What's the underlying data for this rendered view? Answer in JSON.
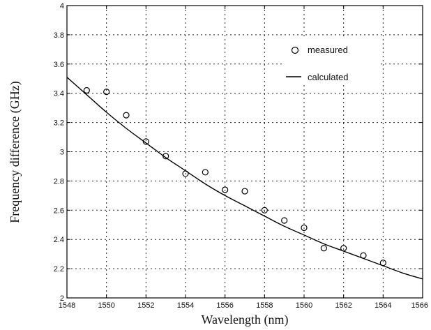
{
  "chart_data": {
    "type": "scatter",
    "title": "",
    "xlabel": "Wavelength (nm)",
    "ylabel": "Frequency difference (GHz)",
    "xlim": [
      1548,
      1566
    ],
    "ylim": [
      2,
      4
    ],
    "grid": true,
    "legend_placement": "top-right",
    "x_ticks": [
      "1548",
      "1550",
      "1552",
      "1554",
      "1556",
      "1558",
      "1560",
      "1562",
      "1564",
      "1566"
    ],
    "y_ticks": [
      "2",
      "2.2",
      "2.4",
      "2.6",
      "2.8",
      "3",
      "3.2",
      "3.4",
      "3.6",
      "3.8",
      "4"
    ],
    "series": [
      {
        "name": "measured",
        "kind": "markers",
        "marker": "open-circle",
        "x": [
          1549,
          1550,
          1551,
          1552,
          1553,
          1554,
          1555,
          1556,
          1557,
          1558,
          1559,
          1560,
          1561,
          1562,
          1563,
          1564
        ],
        "y": [
          3.42,
          3.41,
          3.25,
          3.07,
          2.97,
          2.85,
          2.86,
          2.74,
          2.73,
          2.6,
          2.53,
          2.48,
          2.34,
          2.34,
          2.29,
          2.24
        ]
      },
      {
        "name": "calculated",
        "kind": "line",
        "x": [
          1548,
          1549,
          1550,
          1551,
          1552,
          1553,
          1554,
          1555,
          1556,
          1557,
          1558,
          1559,
          1560,
          1561,
          1562,
          1563,
          1564,
          1565,
          1566
        ],
        "y": [
          3.51,
          3.39,
          3.27,
          3.16,
          3.06,
          2.96,
          2.87,
          2.78,
          2.7,
          2.63,
          2.56,
          2.49,
          2.43,
          2.37,
          2.32,
          2.27,
          2.22,
          2.17,
          2.13
        ]
      }
    ],
    "colors": {
      "ink": "#000000",
      "background": "#ffffff"
    }
  }
}
